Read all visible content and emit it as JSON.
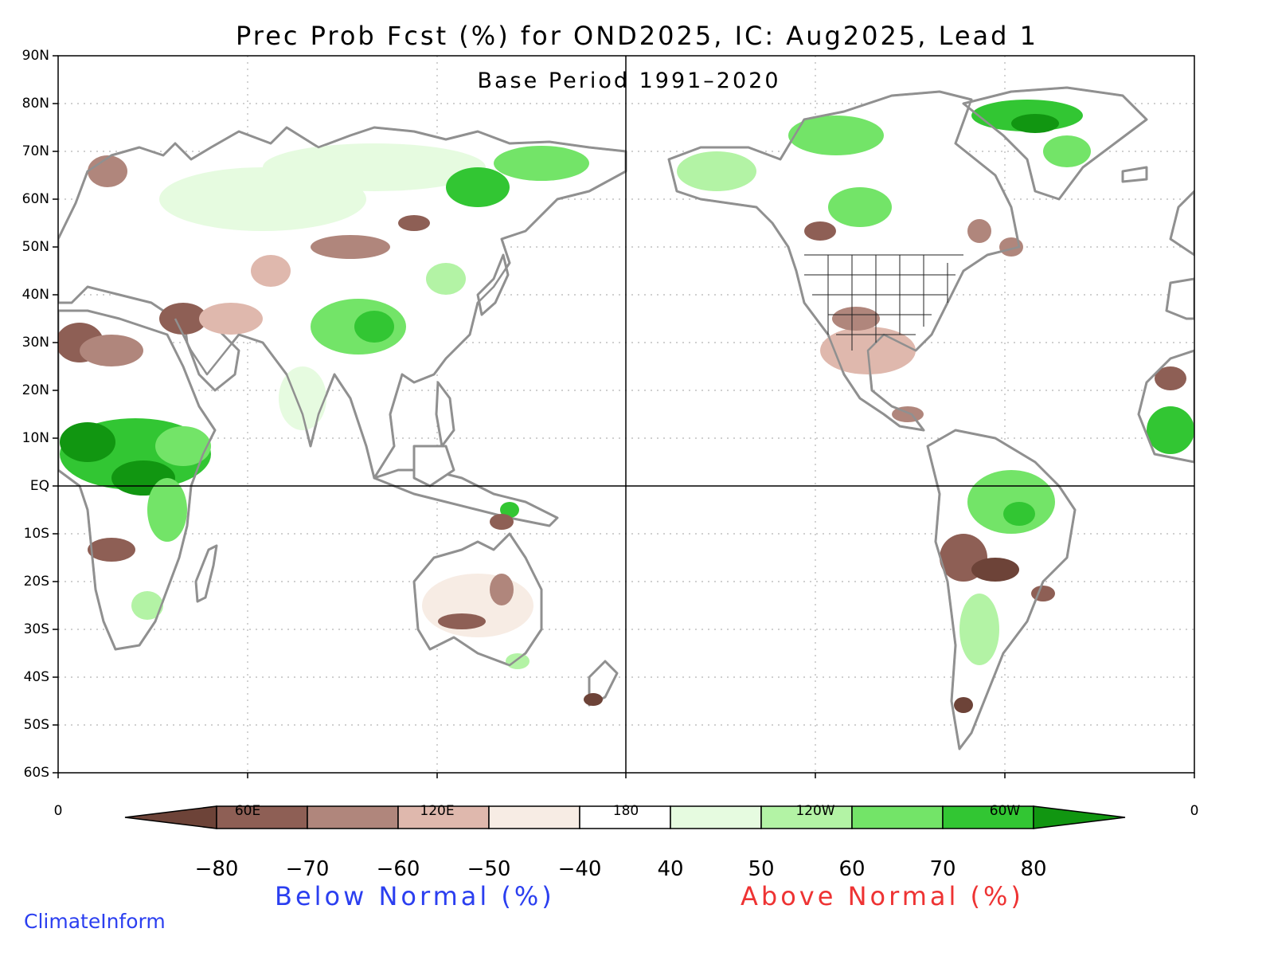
{
  "map": {
    "title": "Prec Prob Fcst (%) for OND2025, IC: Aug2025, Lead 1",
    "subtitle": "Base Period 1991–2020",
    "projection": "equirectangular, 0 to 360 longitude, 60S to 90N",
    "lat_labels": [
      "90N",
      "80N",
      "70N",
      "60N",
      "50N",
      "40N",
      "30N",
      "20N",
      "10N",
      "EQ",
      "10S",
      "20S",
      "30S",
      "40S",
      "50S",
      "60S"
    ],
    "lon_labels": [
      "0",
      "60E",
      "120E",
      "180",
      "120W",
      "60W",
      "0"
    ],
    "colorbar": {
      "labels": [
        "−80",
        "−70",
        "−60",
        "−50",
        "−40",
        "40",
        "50",
        "60",
        "70",
        "80"
      ],
      "below_colors": [
        "#6d4338",
        "#8e5f55",
        "#b0867c",
        "#dfb8ad",
        "#f7ece4",
        "#ffffff"
      ],
      "above_colors": [
        "#e6fbe0",
        "#b3f3a5",
        "#73e468",
        "#32c633",
        "#119611"
      ],
      "below_caption": "Below Normal (%)",
      "above_caption": "Above Normal (%)"
    },
    "colors": {
      "land_outline": "#909090",
      "grid": "#b4b4b4",
      "frame": "#000000",
      "below_accent": "#2b3ff0",
      "above_accent": "#ee3333"
    },
    "credit": "ClimateInform"
  }
}
